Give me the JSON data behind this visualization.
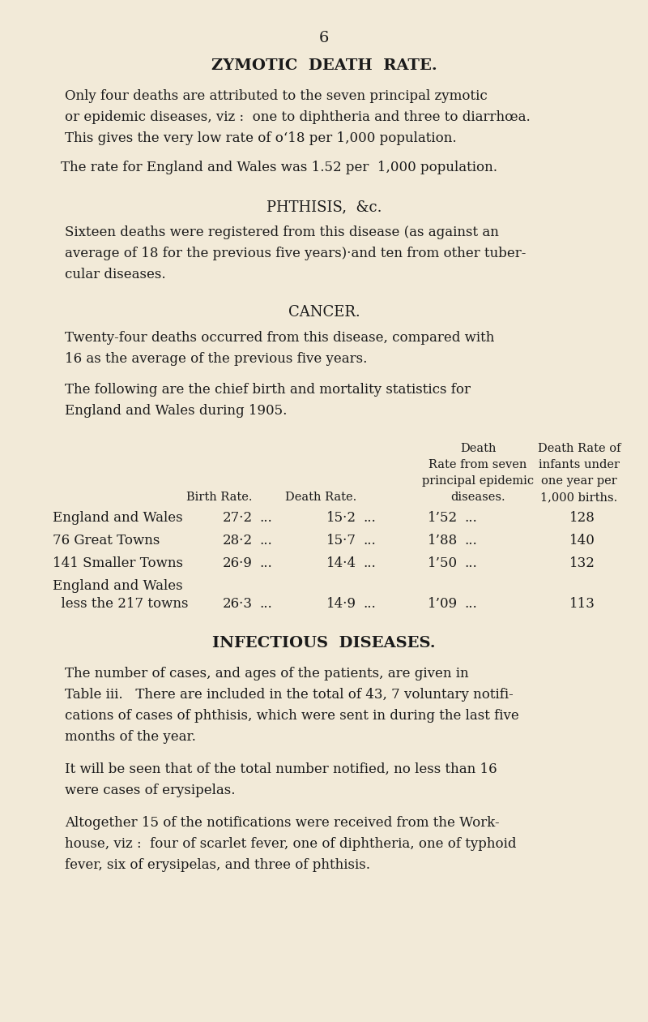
{
  "bg_color": "#f2ead8",
  "text_color": "#1a1a1a",
  "page_number": "6",
  "title1": "ZYMOTIC  DEATH  RATE.",
  "title2": "PHTHISIS,  &c.",
  "title3": "CANCER.",
  "title4": "INFECTIOUS  DISEASES.",
  "para1_lines": [
    "Only four deaths are attributed to the seven principal zymotic",
    "or epidemic diseases, viz :  one to diphtheria and three to diarrhœa.",
    "This gives the very low rate of o‘18 per 1,000 population."
  ],
  "para2": "The rate for England and Wales was 1.52 per  1,000 population.",
  "para3_lines": [
    "Sixteen deaths were registered from this disease (as against an",
    "average of 18 for the previous five years)·and ten from other tuber-",
    "cular diseases."
  ],
  "para4_lines": [
    "Twenty-four deaths occurred from this disease, compared with",
    "16 as the average of the previous five years."
  ],
  "para5_lines": [
    "The following are the chief birth and mortality statistics for",
    "England and Wales during 1905."
  ],
  "para6_lines": [
    "The number of cases, and ages of the patients, are given in",
    "Table iii.   There are included in the total of 43, 7 voluntary notifi-",
    "cations of cases of phthisis, which were sent in during the last five",
    "months of the year."
  ],
  "para7_lines": [
    "It will be seen that of the total number notified, no less than 16",
    "were cases of erysipelas."
  ],
  "para8_lines": [
    "Altogether 15 of the notifications were received from the Work-",
    "house, viz :  four of scarlet fever, one of diphtheria, one of typhoid",
    "fever, six of erysipelas, and three of phthisis."
  ],
  "tbl_hdr": [
    [
      "",
      "",
      "Death",
      "Death Rate of"
    ],
    [
      "",
      "",
      "Rate from seven",
      "infants under"
    ],
    [
      "",
      "",
      "principal epidemic",
      "one year per"
    ],
    [
      "Birth Rate.",
      "Death Rate.",
      "diseases.",
      "1,000 births."
    ]
  ],
  "tbl_rows": [
    [
      "England and Wales",
      "27·2",
      "...",
      "15·2",
      "...",
      "1’52",
      "...",
      "128"
    ],
    [
      "76 Great Towns",
      "28·2",
      "...",
      "15·7",
      "...",
      "1’88",
      "...",
      "140"
    ],
    [
      "141 Smaller Towns",
      "26·9",
      "...",
      "14·4",
      "...",
      "1’50",
      "...",
      "132"
    ],
    [
      "England and Wales",
      "",
      "",
      "",
      "",
      "",
      "",
      ""
    ],
    [
      "  less the 217 towns",
      "26·3",
      "...",
      "14·9",
      "...",
      "1’09",
      "...",
      "113"
    ]
  ]
}
